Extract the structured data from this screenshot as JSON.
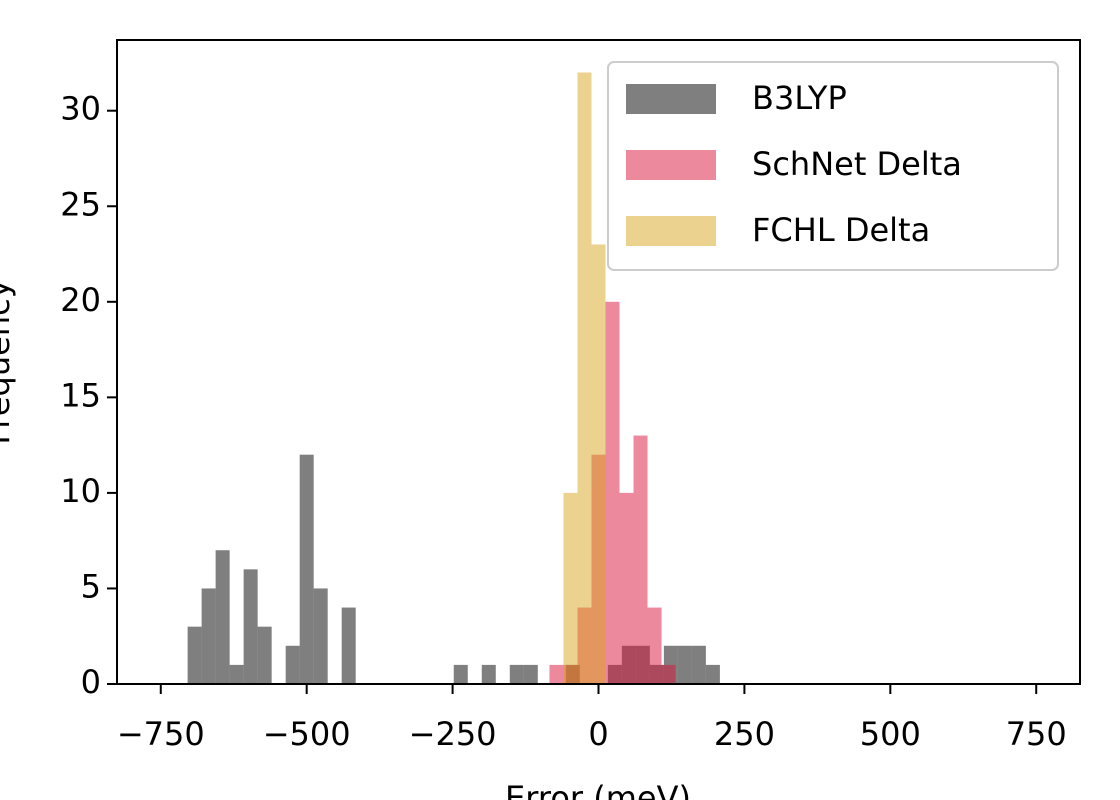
{
  "chart_data": {
    "type": "histogram",
    "xlabel": "Error (meV)",
    "ylabel": "Frequency",
    "xlim": [
      -825,
      825
    ],
    "ylim": [
      0,
      33.7
    ],
    "xticks": [
      {
        "value": -750,
        "label": "−750"
      },
      {
        "value": -500,
        "label": "−500"
      },
      {
        "value": -250,
        "label": "−250"
      },
      0,
      250,
      500,
      750
    ],
    "yticks": [
      0,
      5,
      10,
      15,
      20,
      25,
      30
    ],
    "alpha": 0.5,
    "legend": "upper right",
    "series": [
      {
        "name": "B3LYP",
        "color": "#000000",
        "bins": [
          -704,
          -680,
          -656,
          -632,
          -608,
          -584,
          -560,
          -536,
          -512,
          -488,
          -464,
          -440,
          -416,
          -392,
          -368,
          -344,
          -320,
          -296,
          -272,
          -248,
          -224,
          -200,
          -176,
          -152,
          -128,
          -104,
          -80,
          -56,
          -32,
          -8,
          16,
          40,
          64,
          88,
          112,
          136,
          160,
          184,
          208
        ],
        "values": [
          3,
          5,
          7,
          1,
          6,
          3,
          0,
          2,
          12,
          5,
          0,
          4,
          0,
          0,
          0,
          0,
          0,
          0,
          0,
          1,
          0,
          1,
          0,
          1,
          1,
          0,
          0,
          1,
          0,
          0,
          1,
          2,
          2,
          1,
          2,
          2,
          2,
          1
        ]
      },
      {
        "name": "SchNet Delta",
        "color": "#dc143c",
        "bins": [
          -84,
          -60,
          -36,
          -12,
          12,
          36,
          60,
          84,
          108,
          132
        ],
        "values": [
          1,
          1,
          4,
          12,
          20,
          10,
          13,
          4,
          1
        ]
      },
      {
        "name": "FCHL Delta",
        "color": "#daa520",
        "bins": [
          -60,
          -36,
          -12,
          12
        ],
        "values": [
          10,
          32,
          23
        ]
      }
    ]
  }
}
